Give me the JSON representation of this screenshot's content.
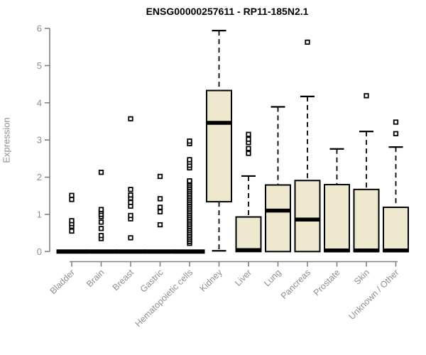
{
  "title": "ENSG00000257611 - RP11-185N2.1",
  "colors": {
    "box_fill": "#EDE8CE",
    "box_border": "#000000",
    "median": "#000000",
    "whisker": "#000000",
    "outlier": "#000000",
    "axis_line": "#808080",
    "axis_text": "#8f8f8f",
    "title_text": "#000000",
    "background": "#ffffff"
  },
  "chart_data": {
    "type": "boxplot",
    "title": "ENSG00000257611 - RP11-185N2.1",
    "ylabel": "Expression",
    "xlabel": "",
    "ylim": [
      0,
      6
    ],
    "yticks": [
      0,
      1,
      2,
      3,
      4,
      5,
      6
    ],
    "grid": false,
    "legend": null,
    "categories": [
      "Bladder",
      "Brain",
      "Breast",
      "Gastric",
      "Hematopoietic cells",
      "Kidney",
      "Liver",
      "Lung",
      "Pancreas",
      "Prostate",
      "Skin",
      "Unknown / Other"
    ],
    "boxes": [
      {
        "category": "Bladder",
        "q1": 0,
        "median": 0,
        "q3": 0,
        "whisker_low": 0,
        "whisker_high": 0,
        "outliers": [
          0.55,
          0.68,
          0.75,
          0.83,
          1.4,
          1.51
        ]
      },
      {
        "category": "Brain",
        "q1": 0,
        "median": 0,
        "q3": 0,
        "whisker_low": 0,
        "whisker_high": 0,
        "outliers": [
          0.35,
          0.43,
          0.62,
          0.79,
          0.94,
          1.0,
          1.08,
          1.13,
          2.13
        ]
      },
      {
        "category": "Breast",
        "q1": 0,
        "median": 0,
        "q3": 0,
        "whisker_low": 0,
        "whisker_high": 0,
        "outliers": [
          0.37,
          0.88,
          0.97,
          1.22,
          1.32,
          1.44,
          1.52,
          1.67,
          3.57
        ]
      },
      {
        "category": "Gastric",
        "q1": 0,
        "median": 0,
        "q3": 0,
        "whisker_low": 0,
        "whisker_high": 0,
        "outliers": [
          0.72,
          1.07,
          1.19,
          1.42,
          2.02
        ]
      },
      {
        "category": "Hematopoietic cells",
        "q1": 0,
        "median": 0,
        "q3": 0,
        "whisker_low": 0,
        "whisker_high": 0,
        "outliers": [
          0.22,
          0.27,
          0.32,
          0.37,
          0.42,
          0.47,
          0.52,
          0.57,
          0.62,
          0.67,
          0.72,
          0.77,
          0.82,
          0.87,
          0.92,
          0.97,
          1.02,
          1.07,
          1.12,
          1.17,
          1.22,
          1.27,
          1.32,
          1.37,
          1.42,
          1.47,
          1.52,
          1.57,
          1.62,
          1.67,
          1.72,
          1.77,
          1.82,
          1.87,
          1.9,
          2.25,
          2.32,
          2.4,
          2.47,
          2.9,
          2.97
        ]
      },
      {
        "category": "Kidney",
        "q1": 1.34,
        "median": 3.46,
        "q3": 4.33,
        "whisker_low": 0.02,
        "whisker_high": 5.94,
        "outliers": []
      },
      {
        "category": "Liver",
        "q1": 0,
        "median": 0.04,
        "q3": 0.93,
        "whisker_low": 0,
        "whisker_high": 2.03,
        "outliers": [
          2.64,
          2.77,
          2.93,
          3.02,
          3.15
        ]
      },
      {
        "category": "Lung",
        "q1": 0,
        "median": 1.1,
        "q3": 1.79,
        "whisker_low": 0,
        "whisker_high": 3.89,
        "outliers": []
      },
      {
        "category": "Pancreas",
        "q1": 0,
        "median": 0.86,
        "q3": 1.91,
        "whisker_low": 0,
        "whisker_high": 4.17,
        "outliers": [
          5.63
        ]
      },
      {
        "category": "Prostate",
        "q1": 0,
        "median": 0.03,
        "q3": 1.8,
        "whisker_low": 0,
        "whisker_high": 2.76,
        "outliers": []
      },
      {
        "category": "Skin",
        "q1": 0,
        "median": 0.03,
        "q3": 1.67,
        "whisker_low": 0,
        "whisker_high": 3.23,
        "outliers": [
          4.19
        ]
      },
      {
        "category": "Unknown / Other",
        "q1": 0,
        "median": 0.03,
        "q3": 1.19,
        "whisker_low": 0,
        "whisker_high": 2.81,
        "outliers": [
          3.17,
          3.48
        ]
      }
    ]
  }
}
